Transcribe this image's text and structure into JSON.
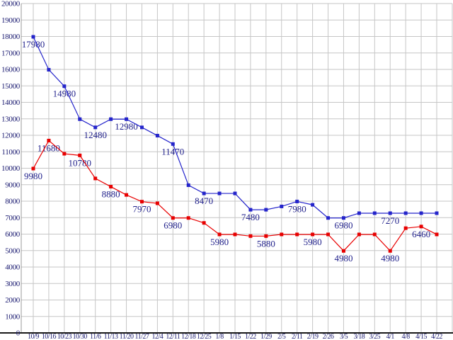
{
  "chart_data": {
    "type": "line",
    "title": "",
    "legend_position": "none",
    "grid": true,
    "xlabel": "",
    "ylabel": "",
    "ylim": [
      0,
      20000
    ],
    "y_tick_step": 1000,
    "y_tick_labels": [
      "20000",
      "19000",
      "18000",
      "17000",
      "16000",
      "15000",
      "14000",
      "13000",
      "12000",
      "11000",
      "10000",
      "9000",
      "8000",
      "7000",
      "6000",
      "5000",
      "4000",
      "3000",
      "2000",
      "1000",
      "0"
    ],
    "categories": [
      "10/9",
      "10/16",
      "10/23",
      "10/30",
      "11/6",
      "11/13",
      "11/20",
      "11/27",
      "12/4",
      "12/11",
      "12/18",
      "12/25",
      "1/8",
      "1/15",
      "1/22",
      "1/29",
      "2/5",
      "2/11",
      "2/19",
      "2/26",
      "3/5",
      "3/18",
      "3/25",
      "4/1",
      "4/8",
      "4/15",
      "4/22"
    ],
    "series": [
      {
        "name": "series-blue",
        "color": "#2424cb",
        "values": [
          17980,
          15980,
          14980,
          12980,
          12480,
          12980,
          12980,
          12480,
          11980,
          11470,
          8970,
          8470,
          8470,
          8470,
          7480,
          7480,
          7680,
          7980,
          7780,
          6980,
          6980,
          7270,
          7270,
          7270,
          7270,
          7270,
          7270
        ],
        "point_labels": [
          {
            "i": 0,
            "text": "17980"
          },
          {
            "i": 2,
            "text": "14980"
          },
          {
            "i": 4,
            "text": "12480"
          },
          {
            "i": 6,
            "text": "12980"
          },
          {
            "i": 9,
            "text": "11470"
          },
          {
            "i": 11,
            "text": "8470"
          },
          {
            "i": 14,
            "text": "7480"
          },
          {
            "i": 17,
            "text": "7980"
          },
          {
            "i": 20,
            "text": "6980"
          },
          {
            "i": 23,
            "text": "7270"
          }
        ]
      },
      {
        "name": "series-red",
        "color": "#e80000",
        "values": [
          9980,
          11680,
          10880,
          10780,
          9380,
          8880,
          8380,
          7970,
          7870,
          6980,
          6980,
          6680,
          5980,
          5980,
          5880,
          5880,
          5980,
          5980,
          5980,
          5980,
          4980,
          5980,
          5980,
          4980,
          6360,
          6460,
          5980
        ],
        "point_labels": [
          {
            "i": 0,
            "text": "9980"
          },
          {
            "i": 1,
            "text": "11680"
          },
          {
            "i": 3,
            "text": "10780"
          },
          {
            "i": 5,
            "text": "8880"
          },
          {
            "i": 7,
            "text": "7970"
          },
          {
            "i": 9,
            "text": "6980"
          },
          {
            "i": 12,
            "text": "5980"
          },
          {
            "i": 15,
            "text": "5880"
          },
          {
            "i": 18,
            "text": "5980"
          },
          {
            "i": 20,
            "text": "4980"
          },
          {
            "i": 23,
            "text": "4980"
          },
          {
            "i": 25,
            "text": "6460"
          }
        ]
      }
    ],
    "style": {
      "background": "#ffffff",
      "grid_color": "#c6c6c6",
      "axis_line_color": "#1a1a1a",
      "tick_label_color": "#1a1a70",
      "data_label_color": "#22228c"
    }
  }
}
